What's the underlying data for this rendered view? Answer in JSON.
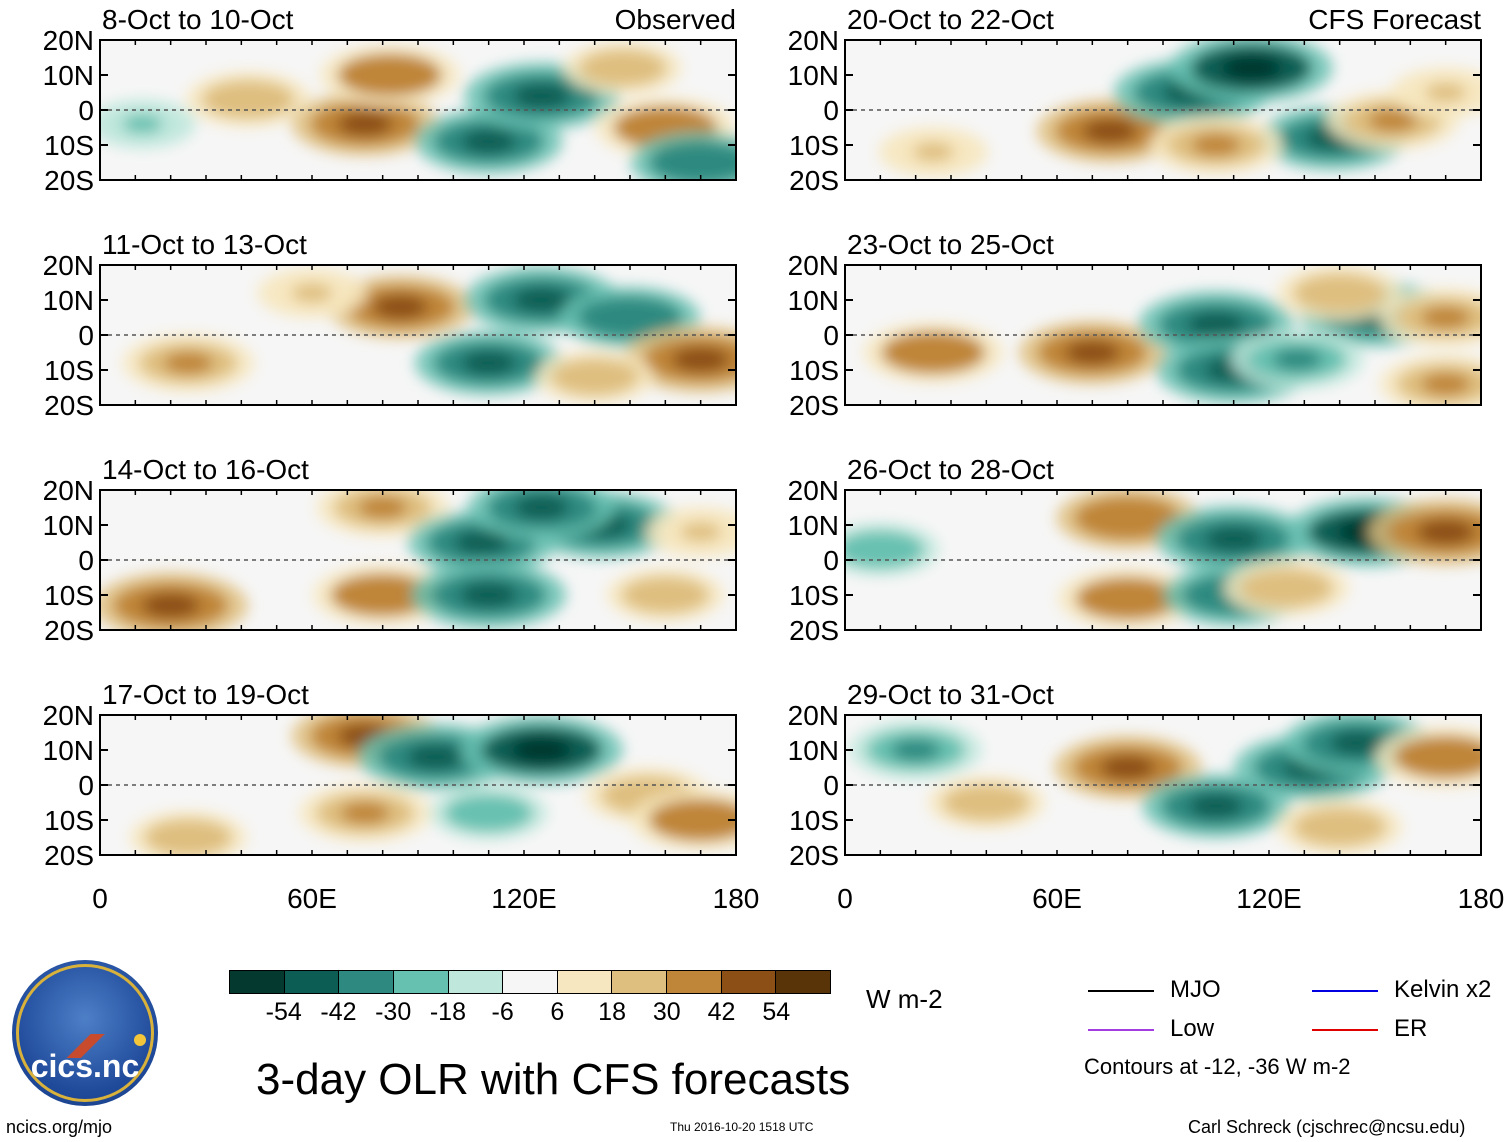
{
  "chart_data": {
    "type": "heatmap",
    "title": "3-day OLR with CFS forecasts",
    "variable": "OLR anomaly",
    "units": "W m-2",
    "x_axis": {
      "range": [
        0,
        180
      ],
      "tick_values": [
        0,
        60,
        120,
        180
      ],
      "tick_labels": [
        "0",
        "60E",
        "120E",
        "180"
      ]
    },
    "y_axis": {
      "range": [
        -20,
        20
      ],
      "tick_values": [
        20,
        10,
        0,
        -10,
        -20
      ],
      "tick_labels": [
        "20N",
        "10N",
        "0",
        "10S",
        "20S"
      ]
    },
    "colorbar": {
      "labels": [
        "-54",
        "-42",
        "-30",
        "-18",
        "-6",
        "6",
        "18",
        "30",
        "42",
        "54"
      ],
      "colors": [
        "#04392f",
        "#0c5e55",
        "#2e8a80",
        "#67c1b1",
        "#bfe7dc",
        "#f6f6f6",
        "#f7e7c0",
        "#dfbf80",
        "#bf8538",
        "#8c5016",
        "#5a3409"
      ]
    },
    "legend": [
      {
        "name": "MJO",
        "color": "#000000"
      },
      {
        "name": "Kelvin x2",
        "color": "#0000e0"
      },
      {
        "name": "Low",
        "color": "#a33ce0"
      },
      {
        "name": "ER",
        "color": "#e00000"
      }
    ],
    "contour_note": "Contours at -12, -36 W m-2",
    "panels": [
      {
        "period": "8-Oct to 10-Oct",
        "source": "Observed",
        "anomalies": [
          {
            "lon": 42,
            "lat": 3,
            "value": 30
          },
          {
            "lon": 75,
            "lat": -4,
            "value": 45
          },
          {
            "lon": 82,
            "lat": 10,
            "value": 40
          },
          {
            "lon": 110,
            "lat": -9,
            "value": -45
          },
          {
            "lon": 125,
            "lat": 4,
            "value": -50
          },
          {
            "lon": 160,
            "lat": -5,
            "value": 40
          },
          {
            "lon": 12,
            "lat": -4,
            "value": -18
          },
          {
            "lon": 170,
            "lat": -15,
            "value": -40
          },
          {
            "lon": 148,
            "lat": 12,
            "value": 25
          }
        ]
      },
      {
        "period": "20-Oct to 22-Oct",
        "source": "CFS Forecast",
        "anomalies": [
          {
            "lon": 75,
            "lat": -6,
            "value": 45
          },
          {
            "lon": 98,
            "lat": 5,
            "value": -50
          },
          {
            "lon": 115,
            "lat": 12,
            "value": -55
          },
          {
            "lon": 138,
            "lat": -8,
            "value": -45
          },
          {
            "lon": 155,
            "lat": -3,
            "value": 35
          },
          {
            "lon": 105,
            "lat": -10,
            "value": 35
          },
          {
            "lon": 25,
            "lat": -12,
            "value": 20
          },
          {
            "lon": 170,
            "lat": 5,
            "value": 20
          }
        ]
      },
      {
        "period": "11-Oct to 13-Oct",
        "source": "",
        "anomalies": [
          {
            "lon": 85,
            "lat": 8,
            "value": 45
          },
          {
            "lon": 110,
            "lat": -8,
            "value": -45
          },
          {
            "lon": 125,
            "lat": 10,
            "value": -50
          },
          {
            "lon": 150,
            "lat": 5,
            "value": -40
          },
          {
            "lon": 170,
            "lat": -7,
            "value": 50
          },
          {
            "lon": 25,
            "lat": -8,
            "value": 35
          },
          {
            "lon": 140,
            "lat": -12,
            "value": 25
          },
          {
            "lon": 60,
            "lat": 12,
            "value": 20
          }
        ]
      },
      {
        "period": "23-Oct to 25-Oct",
        "source": "",
        "anomalies": [
          {
            "lon": 70,
            "lat": -5,
            "value": 45
          },
          {
            "lon": 25,
            "lat": -5,
            "value": 40
          },
          {
            "lon": 105,
            "lat": 3,
            "value": -50
          },
          {
            "lon": 110,
            "lat": -10,
            "value": -50
          },
          {
            "lon": 150,
            "lat": 6,
            "value": -48
          },
          {
            "lon": 128,
            "lat": -7,
            "value": -35
          },
          {
            "lon": 140,
            "lat": 12,
            "value": 30
          },
          {
            "lon": 170,
            "lat": -14,
            "value": 35
          },
          {
            "lon": 170,
            "lat": 5,
            "value": 35
          }
        ]
      },
      {
        "period": "14-Oct to 16-Oct",
        "source": "",
        "anomalies": [
          {
            "lon": 20,
            "lat": -13,
            "value": 50
          },
          {
            "lon": 80,
            "lat": -10,
            "value": 40
          },
          {
            "lon": 80,
            "lat": 15,
            "value": 35
          },
          {
            "lon": 108,
            "lat": 5,
            "value": -45
          },
          {
            "lon": 110,
            "lat": -10,
            "value": -50
          },
          {
            "lon": 142,
            "lat": 10,
            "value": -50
          },
          {
            "lon": 125,
            "lat": 15,
            "value": -45
          },
          {
            "lon": 160,
            "lat": -10,
            "value": 25
          },
          {
            "lon": 170,
            "lat": 8,
            "value": 20
          }
        ]
      },
      {
        "period": "26-Oct to 28-Oct",
        "source": "",
        "anomalies": [
          {
            "lon": 80,
            "lat": 12,
            "value": 42
          },
          {
            "lon": 110,
            "lat": 6,
            "value": -50
          },
          {
            "lon": 148,
            "lat": 8,
            "value": -55
          },
          {
            "lon": 170,
            "lat": 8,
            "value": 50
          },
          {
            "lon": 80,
            "lat": -11,
            "value": 40
          },
          {
            "lon": 110,
            "lat": -10,
            "value": -40
          },
          {
            "lon": 10,
            "lat": 3,
            "value": -25
          },
          {
            "lon": 125,
            "lat": -8,
            "value": 30
          }
        ]
      },
      {
        "period": "17-Oct to 19-Oct",
        "source": "",
        "anomalies": [
          {
            "lon": 75,
            "lat": 14,
            "value": 45
          },
          {
            "lon": 95,
            "lat": 8,
            "value": -50
          },
          {
            "lon": 125,
            "lat": 10,
            "value": -55
          },
          {
            "lon": 75,
            "lat": -8,
            "value": 35
          },
          {
            "lon": 155,
            "lat": -3,
            "value": 30
          },
          {
            "lon": 170,
            "lat": -10,
            "value": 40
          },
          {
            "lon": 25,
            "lat": -15,
            "value": 25
          },
          {
            "lon": 110,
            "lat": -8,
            "value": -25
          }
        ]
      },
      {
        "period": "29-Oct to 31-Oct",
        "source": "",
        "anomalies": [
          {
            "lon": 80,
            "lat": 5,
            "value": 45
          },
          {
            "lon": 132,
            "lat": 5,
            "value": -50
          },
          {
            "lon": 145,
            "lat": 12,
            "value": -45
          },
          {
            "lon": 170,
            "lat": 8,
            "value": 40
          },
          {
            "lon": 105,
            "lat": -6,
            "value": -45
          },
          {
            "lon": 20,
            "lat": 10,
            "value": -35
          },
          {
            "lon": 40,
            "lat": -5,
            "value": 25
          },
          {
            "lon": 140,
            "lat": -12,
            "value": 30
          }
        ]
      }
    ]
  },
  "logo": {
    "text": "cics.nc"
  },
  "footer": {
    "left": "ncics.org/mjo",
    "center": "Thu 2016-10-20 1518 UTC",
    "right": "Carl Schreck (cjschrec@ncsu.edu)"
  }
}
